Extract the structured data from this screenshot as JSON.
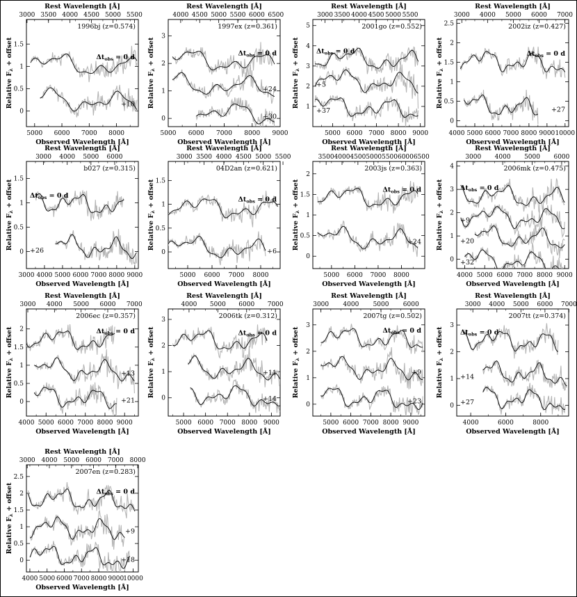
{
  "figure": {
    "x_label_bottom": "Observed Wavelength [Å]",
    "x_label_top": "Rest Wavelength [Å]",
    "y_label": "Relative F",
    "y_label_sub": "λ",
    "y_label_tail": " + offset",
    "dt_label": "Δt",
    "dt_sub": "obs",
    "dt_tail": " = 0 d"
  },
  "chart_data": [
    {
      "type": "line",
      "name": "1996bj (z=0.574)",
      "xlim": [
        4700,
        8800
      ],
      "ylim": [
        -0.35,
        2.05
      ],
      "xticks": [
        5000,
        6000,
        7000,
        8000
      ],
      "yticks": [
        0,
        0.5,
        1,
        1.5
      ],
      "top_xticks": [
        3000,
        3500,
        4000,
        4500,
        5000,
        5500
      ],
      "z": 0.574,
      "label_pos": "right",
      "series": [
        {
          "label": "Δt_obs = 0 d",
          "offset": 1.1,
          "xr": [
            4850,
            8750
          ],
          "phase": 0.3
        },
        {
          "label": "+10",
          "offset": 0.3,
          "xr": [
            5200,
            8750
          ],
          "phase": 1.3
        }
      ]
    },
    {
      "type": "line",
      "name": "1997ex (z=0.361)",
      "xlim": [
        5000,
        9000
      ],
      "ylim": [
        -0.3,
        3.6
      ],
      "xticks": [
        5000,
        6000,
        7000,
        8000,
        9000
      ],
      "yticks": [
        0,
        1,
        2,
        3
      ],
      "top_xticks": [
        4000,
        4500,
        5000,
        5500,
        6000,
        6500
      ],
      "z": 0.361,
      "label_pos": "right",
      "series": [
        {
          "label": "Δt_obs = 0 d",
          "offset": 2.2,
          "xr": [
            5150,
            8800
          ],
          "phase": 0.6
        },
        {
          "label": "+24",
          "offset": 1.3,
          "xr": [
            5150,
            8800
          ],
          "phase": 1.9
        },
        {
          "label": "+30",
          "offset": 0.3,
          "xr": [
            6000,
            8800
          ],
          "phase": 2.7
        }
      ]
    },
    {
      "type": "line",
      "name": "2001go (z=0.552)",
      "xlim": [
        4100,
        9200
      ],
      "ylim": [
        0,
        5.3
      ],
      "xticks": [
        5000,
        6000,
        7000,
        8000,
        9000
      ],
      "yticks": [
        1,
        2,
        3,
        4,
        5
      ],
      "top_xticks": [
        3000,
        3500,
        4000,
        4500,
        5000,
        5500
      ],
      "z": 0.552,
      "label_pos": "left",
      "series": [
        {
          "label": "Δt_obs = 0 d",
          "offset": 3.5,
          "xr": [
            4200,
            8900
          ],
          "phase": 0.2
        },
        {
          "label": "+5",
          "offset": 2.4,
          "xr": [
            4200,
            8900
          ],
          "phase": 1.2
        },
        {
          "label": "+37",
          "offset": 1.1,
          "xr": [
            4200,
            8900
          ],
          "phase": 2.4
        }
      ]
    },
    {
      "type": "line",
      "name": "2002iz (z=0.427)",
      "xlim": [
        4000,
        10200
      ],
      "ylim": [
        -0.15,
        2.6
      ],
      "xticks": [
        4000,
        5000,
        6000,
        7000,
        8000,
        9000,
        10000
      ],
      "yticks": [
        0,
        0.5,
        1,
        1.5,
        2,
        2.5
      ],
      "top_xticks": [
        3000,
        4000,
        5000,
        6000,
        7000
      ],
      "z": 0.427,
      "label_pos": "right",
      "series": [
        {
          "label": "Δt_obs = 0 d",
          "offset": 1.6,
          "xr": [
            4200,
            10000
          ],
          "phase": 0.9
        },
        {
          "label": "+27",
          "offset": 0.45,
          "xr": [
            4400,
            8500
          ],
          "phase": 2.1
        }
      ]
    },
    {
      "type": "line",
      "name": "b027 (z=0.315)",
      "xlim": [
        3000,
        9200
      ],
      "ylim": [
        -0.35,
        1.85
      ],
      "xticks": [
        3000,
        4000,
        5000,
        6000,
        7000,
        8000,
        9000
      ],
      "yticks": [
        0,
        0.5,
        1,
        1.5
      ],
      "top_xticks": [
        3000,
        4000,
        5000,
        6000
      ],
      "z": 0.315,
      "label_pos": "left",
      "series": [
        {
          "label": "Δt_obs = 0 d",
          "offset": 1.05,
          "xr": [
            3500,
            8400
          ],
          "phase": 0.4
        },
        {
          "label": "+26",
          "offset": 0.15,
          "xr": [
            4600,
            9100
          ],
          "phase": 1.6
        }
      ]
    },
    {
      "type": "line",
      "name": "04D2an (z=0.621)",
      "xlim": [
        4200,
        8800
      ],
      "ylim": [
        -0.35,
        1.9
      ],
      "xticks": [
        5000,
        6000,
        7000,
        8000
      ],
      "yticks": [
        0,
        0.5,
        1,
        1.5
      ],
      "top_xticks": [
        3000,
        3500,
        4000,
        4500,
        5000,
        5500
      ],
      "z": 0.621,
      "label_pos": "right",
      "series": [
        {
          "label": "Δt_obs = 0 d",
          "offset": 1.0,
          "xr": [
            4200,
            8700
          ],
          "phase": 0.7
        },
        {
          "label": "+6",
          "offset": 0.15,
          "xr": [
            4200,
            8200
          ],
          "phase": 1.9
        }
      ]
    },
    {
      "type": "line",
      "name": "2003js (z=0.363)",
      "xlim": [
        4200,
        9000
      ],
      "ylim": [
        -0.3,
        2.3
      ],
      "xticks": [
        5000,
        6000,
        7000,
        8000
      ],
      "yticks": [
        0,
        0.5,
        1,
        1.5,
        2
      ],
      "top_xticks": [
        3500,
        4000,
        4500,
        5000,
        5500,
        6000,
        6500
      ],
      "z": 0.363,
      "label_pos": "right",
      "series": [
        {
          "label": "Δt_obs = 0 d",
          "offset": 1.5,
          "xr": [
            4400,
            8700
          ],
          "phase": 0.5
        },
        {
          "label": "+24",
          "offset": 0.5,
          "xr": [
            4400,
            8700
          ],
          "phase": 1.7
        }
      ]
    },
    {
      "type": "line",
      "name": "2006mk (z=0.475)",
      "xlim": [
        3600,
        9200
      ],
      "ylim": [
        -0.4,
        4.2
      ],
      "xticks": [
        4000,
        5000,
        6000,
        7000,
        8000,
        9000
      ],
      "yticks": [
        0,
        1,
        2,
        3,
        4
      ],
      "top_xticks": [
        3000,
        4000,
        5000,
        6000
      ],
      "z": 0.475,
      "label_pos": "left",
      "series": [
        {
          "label": "Δt_obs = 0 d",
          "offset": 2.85,
          "xr": [
            3800,
            9000
          ],
          "phase": 0.2
        },
        {
          "label": "+9",
          "offset": 1.95,
          "xr": [
            3800,
            9000
          ],
          "phase": 1.1
        },
        {
          "label": "+20",
          "offset": 1.05,
          "xr": [
            4500,
            9000
          ],
          "phase": 2.0
        },
        {
          "label": "+32",
          "offset": 0.05,
          "xr": [
            4000,
            9000
          ],
          "phase": 2.9
        }
      ]
    },
    {
      "type": "line",
      "name": "2006ec (z=0.357)",
      "xlim": [
        4000,
        9700
      ],
      "ylim": [
        -0.4,
        2.55
      ],
      "xticks": [
        4000,
        5000,
        6000,
        7000,
        8000,
        9000
      ],
      "yticks": [
        0,
        0.5,
        1,
        1.5,
        2
      ],
      "top_xticks": [
        3000,
        4000,
        5000,
        6000,
        7000
      ],
      "z": 0.357,
      "label_pos": "right",
      "series": [
        {
          "label": "Δt_obs = 0 d",
          "offset": 1.8,
          "xr": [
            4000,
            8500
          ],
          "phase": 0.6
        },
        {
          "label": "+13",
          "offset": 0.95,
          "xr": [
            4400,
            9500
          ],
          "phase": 1.5
        },
        {
          "label": "+21",
          "offset": 0.2,
          "xr": [
            4400,
            8600
          ],
          "phase": 2.6
        }
      ]
    },
    {
      "type": "line",
      "name": "2006tk (z=0.312)",
      "xlim": [
        4300,
        9400
      ],
      "ylim": [
        -0.7,
        3.4
      ],
      "xticks": [
        5000,
        6000,
        7000,
        8000,
        9000
      ],
      "yticks": [
        0,
        1,
        2,
        3
      ],
      "top_xticks": [
        4000,
        5000,
        6000,
        7000
      ],
      "z": 0.312,
      "label_pos": "right",
      "series": [
        {
          "label": "Δt_obs = 0 d",
          "offset": 2.3,
          "xr": [
            4500,
            8800
          ],
          "phase": 0.4
        },
        {
          "label": "+11",
          "offset": 1.2,
          "xr": [
            5200,
            9400
          ],
          "phase": 1.7
        },
        {
          "label": "+14",
          "offset": 0.2,
          "xr": [
            5300,
            9400
          ],
          "phase": 2.8
        }
      ]
    },
    {
      "type": "line",
      "name": "2007tg (z=0.502)",
      "xlim": [
        4100,
        9700
      ],
      "ylim": [
        -0.45,
        3.6
      ],
      "xticks": [
        5000,
        6000,
        7000,
        8000,
        9000
      ],
      "yticks": [
        0,
        1,
        2,
        3
      ],
      "top_xticks": [
        3000,
        4000,
        5000,
        6000
      ],
      "z": 0.502,
      "label_pos": "right",
      "series": [
        {
          "label": "Δt_obs = 0 d",
          "offset": 2.6,
          "xr": [
            4500,
            9600
          ],
          "phase": 0.5
        },
        {
          "label": "+9",
          "offset": 1.45,
          "xr": [
            4500,
            9600
          ],
          "phase": 1.4
        },
        {
          "label": "+23",
          "offset": 0.35,
          "xr": [
            4500,
            9600
          ],
          "phase": 2.5
        }
      ]
    },
    {
      "type": "line",
      "name": "2007tt (z=0.374)",
      "xlim": [
        3200,
        9600
      ],
      "ylim": [
        -0.4,
        3.6
      ],
      "xticks": [
        4000,
        6000,
        8000
      ],
      "yticks": [
        0,
        1,
        2,
        3
      ],
      "top_xticks": [
        3000,
        4000,
        5000,
        6000,
        7000
      ],
      "z": 0.374,
      "label_pos": "left",
      "series": [
        {
          "label": "Δt_obs = 0 d",
          "offset": 2.55,
          "xr": [
            3600,
            9000
          ],
          "phase": 0.8
        },
        {
          "label": "+14",
          "offset": 1.3,
          "xr": [
            4700,
            9500
          ],
          "phase": 1.9
        },
        {
          "label": "+27",
          "offset": 0.35,
          "xr": [
            4700,
            9400
          ],
          "phase": 2.8
        }
      ]
    },
    {
      "type": "line",
      "name": "2007en (z=0.283)",
      "xlim": [
        3800,
        10300
      ],
      "ylim": [
        -0.35,
        2.85
      ],
      "xticks": [
        4000,
        5000,
        6000,
        7000,
        8000,
        9000,
        10000
      ],
      "yticks": [
        0,
        0.5,
        1,
        1.5,
        2,
        2.5
      ],
      "top_xticks": [
        3000,
        4000,
        5000,
        6000,
        7000,
        8000
      ],
      "z": 0.283,
      "label_pos": "right",
      "series": [
        {
          "label": "Δt_obs = 0 d",
          "offset": 1.9,
          "xr": [
            3900,
            10100
          ],
          "phase": 0.3
        },
        {
          "label": "+9",
          "offset": 1.05,
          "xr": [
            4000,
            9500
          ],
          "phase": 1.2
        },
        {
          "label": "+18",
          "offset": 0.2,
          "xr": [
            4000,
            9800
          ],
          "phase": 2.3
        }
      ]
    }
  ]
}
